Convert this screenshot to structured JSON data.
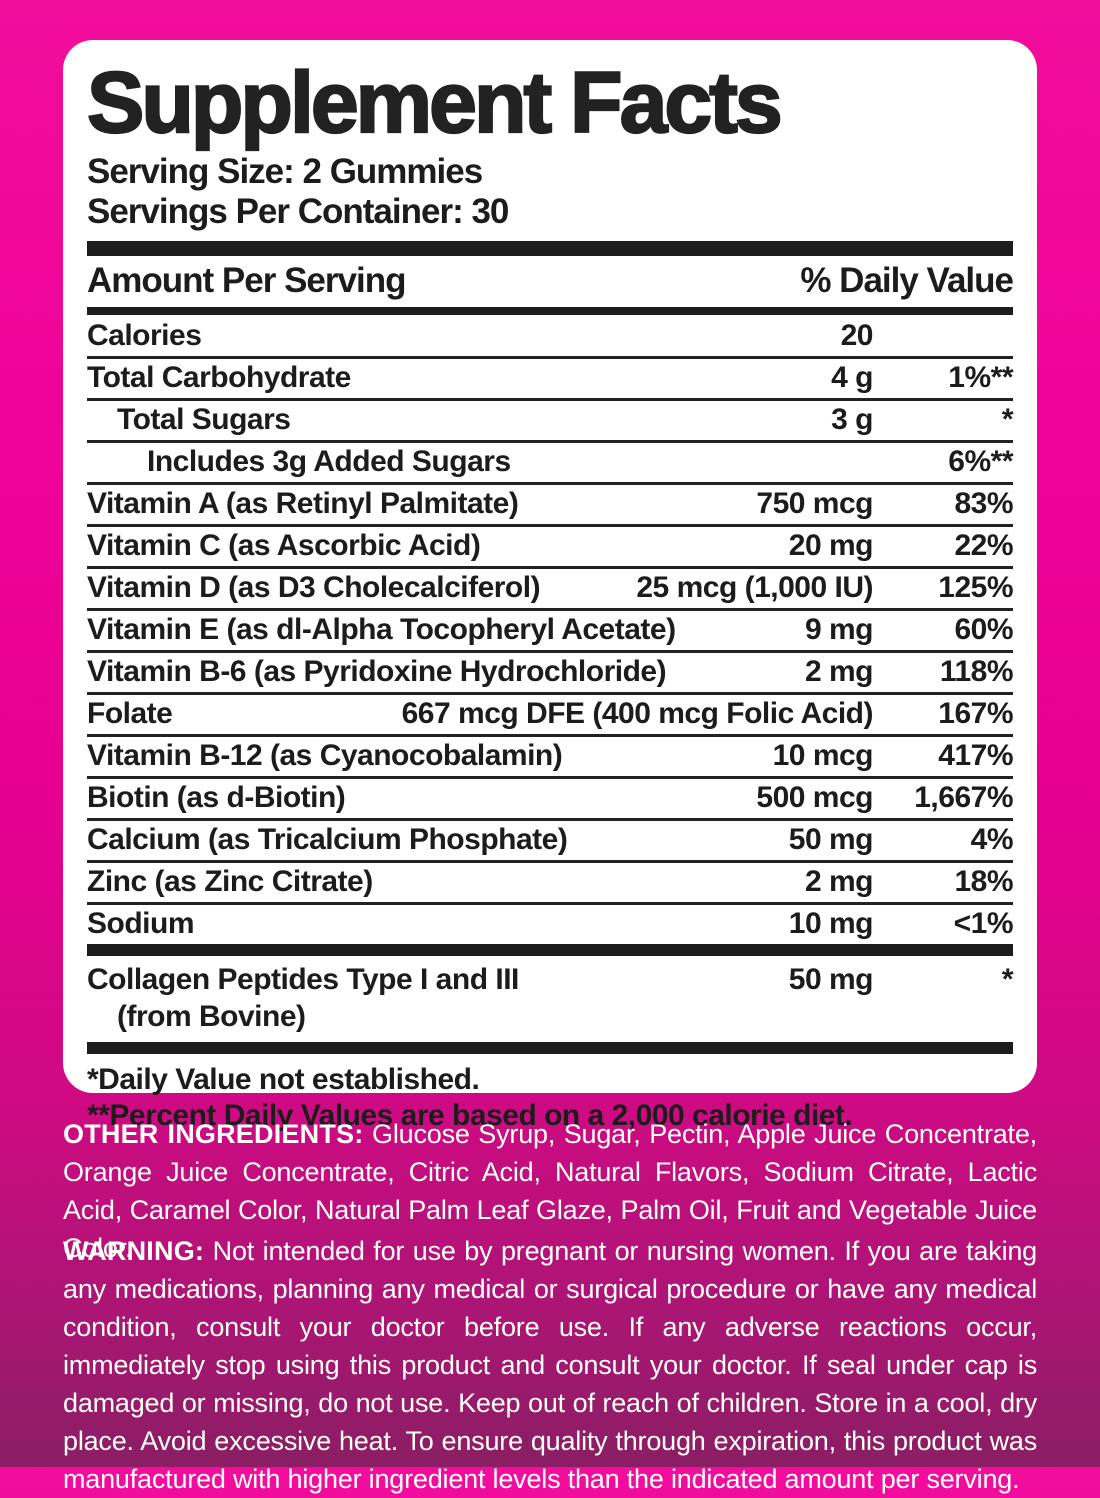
{
  "panel": {
    "title": "Supplement Facts",
    "serving_size": "Serving Size: 2 Gummies",
    "servings_per_container": "Servings Per Container: 30",
    "header": {
      "amount_label": "Amount Per Serving",
      "dv_label": "% Daily Value"
    },
    "rows": [
      {
        "name": "Calories",
        "indent": 0,
        "amount": "20",
        "dv": ""
      },
      {
        "name": "Total Carbohydrate",
        "indent": 0,
        "amount": "4 g",
        "dv": "1%**"
      },
      {
        "name": "Total Sugars",
        "indent": 1,
        "amount": "3 g",
        "dv": "*"
      },
      {
        "name": "Includes 3g Added Sugars",
        "indent": 2,
        "amount": "",
        "dv": "6%**"
      },
      {
        "name": "Vitamin A (as Retinyl Palmitate)",
        "indent": 0,
        "amount": "750 mcg",
        "dv": "83%"
      },
      {
        "name": "Vitamin C (as Ascorbic Acid)",
        "indent": 0,
        "amount": "20 mg",
        "dv": "22%"
      },
      {
        "name": "Vitamin D (as D3 Cholecalciferol)",
        "indent": 0,
        "amount": "25 mcg (1,000 IU)",
        "dv": "125%"
      },
      {
        "name": "Vitamin E (as dl-Alpha Tocopheryl Acetate)",
        "indent": 0,
        "amount": "9 mg",
        "dv": "60%"
      },
      {
        "name": "Vitamin B-6 (as Pyridoxine Hydrochloride)",
        "indent": 0,
        "amount": "2 mg",
        "dv": "118%"
      },
      {
        "name": "Folate",
        "indent": 0,
        "amount": "667 mcg DFE (400 mcg Folic Acid)",
        "dv": "167%"
      },
      {
        "name": "Vitamin B-12 (as Cyanocobalamin)",
        "indent": 0,
        "amount": "10 mcg",
        "dv": "417%"
      },
      {
        "name": "Biotin (as d-Biotin)",
        "indent": 0,
        "amount": "500 mcg",
        "dv": "1,667%"
      },
      {
        "name": "Calcium (as Tricalcium Phosphate)",
        "indent": 0,
        "amount": "50 mg",
        "dv": "4%"
      },
      {
        "name": "Zinc (as Zinc Citrate)",
        "indent": 0,
        "amount": "2 mg",
        "dv": "18%"
      },
      {
        "name": "Sodium",
        "indent": 0,
        "amount": "10 mg",
        "dv": "<1%"
      }
    ],
    "collagen_row": {
      "name_line1": "Collagen Peptides Type I and III",
      "name_line2": "(from Bovine)",
      "amount": "50 mg",
      "dv": "*"
    },
    "footnotes": [
      "*Daily Value not established.",
      "**Percent Daily Values are based on a 2,000 calorie diet."
    ]
  },
  "other_ingredients": {
    "label": "OTHER INGREDIENTS:",
    "text": " Glucose Syrup, Sugar, Pectin, Apple Juice Concentrate, Orange Juice Concentrate, Citric Acid, Natural Flavors, Sodium Citrate, Lactic Acid, Caramel Color, Natural Palm Leaf Glaze, Palm Oil, Fruit and Vegetable Juice Color."
  },
  "warning": {
    "label": "WARNING:",
    "text": " Not intended for use by pregnant or nursing women. If you are taking any medications, planning any medical or surgical procedure or have any medical condition, consult your doctor before use. If any adverse reactions occur, immediately stop using this product and consult your doctor. If seal under cap is damaged or missing, do not use. Keep out of reach of children. Store in a cool, dry place. Avoid excessive heat. To ensure quality through expiration, this product was manufactured with higher ingredient levels than the indicated amount per serving."
  },
  "colors": {
    "background_top": "#f20d9d",
    "background_bottom": "#8a1e63",
    "panel_background": "#ffffff",
    "text_dark": "#1c1c1c",
    "text_light": "#ffffff"
  }
}
